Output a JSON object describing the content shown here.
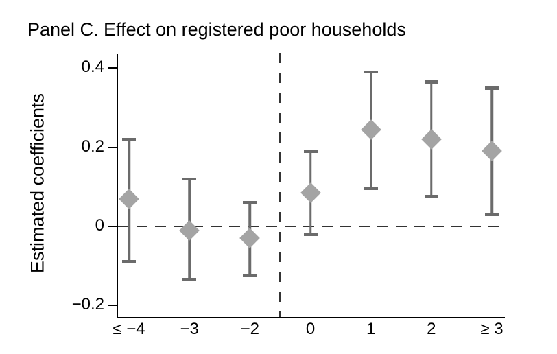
{
  "title": "Panel C. Effect on registered poor households",
  "chart_data": {
    "type": "scatter",
    "subtype": "coefficient-plot-with-confidence-intervals",
    "title": "Panel C. Effect on registered poor households",
    "xlabel": "",
    "ylabel": "Estimated coefficients",
    "categories": [
      "≤ −4",
      "−3",
      "−2",
      "0",
      "1",
      "2",
      "≥ 3"
    ],
    "series": [
      {
        "name": "Estimated coefficients",
        "points": [
          {
            "x": "≤ −4",
            "coef": 0.07,
            "ci_low": -0.09,
            "ci_high": 0.22
          },
          {
            "x": "−3",
            "coef": -0.01,
            "ci_low": -0.135,
            "ci_high": 0.12
          },
          {
            "x": "−2",
            "coef": -0.03,
            "ci_low": -0.125,
            "ci_high": 0.06
          },
          {
            "x": "0",
            "coef": 0.085,
            "ci_low": -0.02,
            "ci_high": 0.19
          },
          {
            "x": "1",
            "coef": 0.245,
            "ci_low": 0.095,
            "ci_high": 0.39
          },
          {
            "x": "2",
            "coef": 0.22,
            "ci_low": 0.075,
            "ci_high": 0.365
          },
          {
            "x": "≥ 3",
            "coef": 0.19,
            "ci_low": 0.03,
            "ci_high": 0.35
          }
        ]
      }
    ],
    "yticks": [
      0.4,
      0.2,
      0,
      -0.2
    ],
    "ytick_labels": [
      "0.4",
      "0.2",
      "0",
      "−0.2"
    ],
    "ylim": [
      -0.23,
      0.437
    ],
    "grid": false,
    "legend": "none",
    "marker": "diamond",
    "reference_lines": {
      "horizontal_at_y": 0,
      "vertical_between_categories": [
        "−2",
        "0"
      ]
    },
    "colors": {
      "marker": "#a4a4a4",
      "error_bar": "#6b6b6b",
      "dashed_line": "#333333",
      "axis": "#000000",
      "text": "#000000",
      "background": "#ffffff"
    }
  }
}
